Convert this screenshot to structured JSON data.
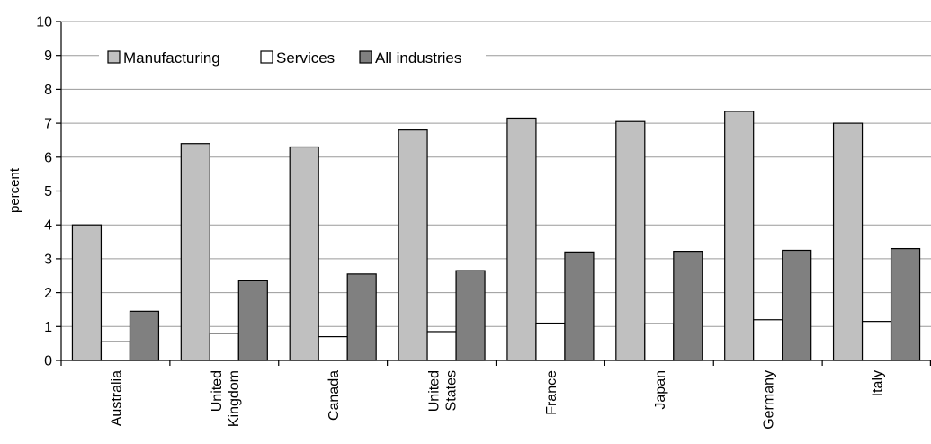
{
  "chart_data": {
    "type": "bar",
    "ylabel": "percent",
    "xlabel": "",
    "title": "",
    "ylim": [
      0,
      10
    ],
    "yticks": [
      0,
      1,
      2,
      3,
      4,
      5,
      6,
      7,
      8,
      9,
      10
    ],
    "grid": true,
    "legend_position": "top-left",
    "categories": [
      [
        "Australia"
      ],
      [
        "United",
        "Kingdom"
      ],
      [
        "Canada"
      ],
      [
        "United",
        "States"
      ],
      [
        "France"
      ],
      [
        "Japan"
      ],
      [
        "Germany"
      ],
      [
        "Italy"
      ]
    ],
    "series": [
      {
        "name": "Manufacturing",
        "color": "#c0c0c0",
        "values": [
          4.0,
          6.4,
          6.3,
          6.8,
          7.15,
          7.05,
          7.35,
          7.0
        ]
      },
      {
        "name": "Services",
        "color": "#ffffff",
        "values": [
          0.55,
          0.8,
          0.7,
          0.85,
          1.1,
          1.08,
          1.2,
          1.15
        ]
      },
      {
        "name": "All industries",
        "color": "#808080",
        "values": [
          1.45,
          2.35,
          2.55,
          2.65,
          3.2,
          3.22,
          3.25,
          3.3
        ]
      }
    ]
  }
}
